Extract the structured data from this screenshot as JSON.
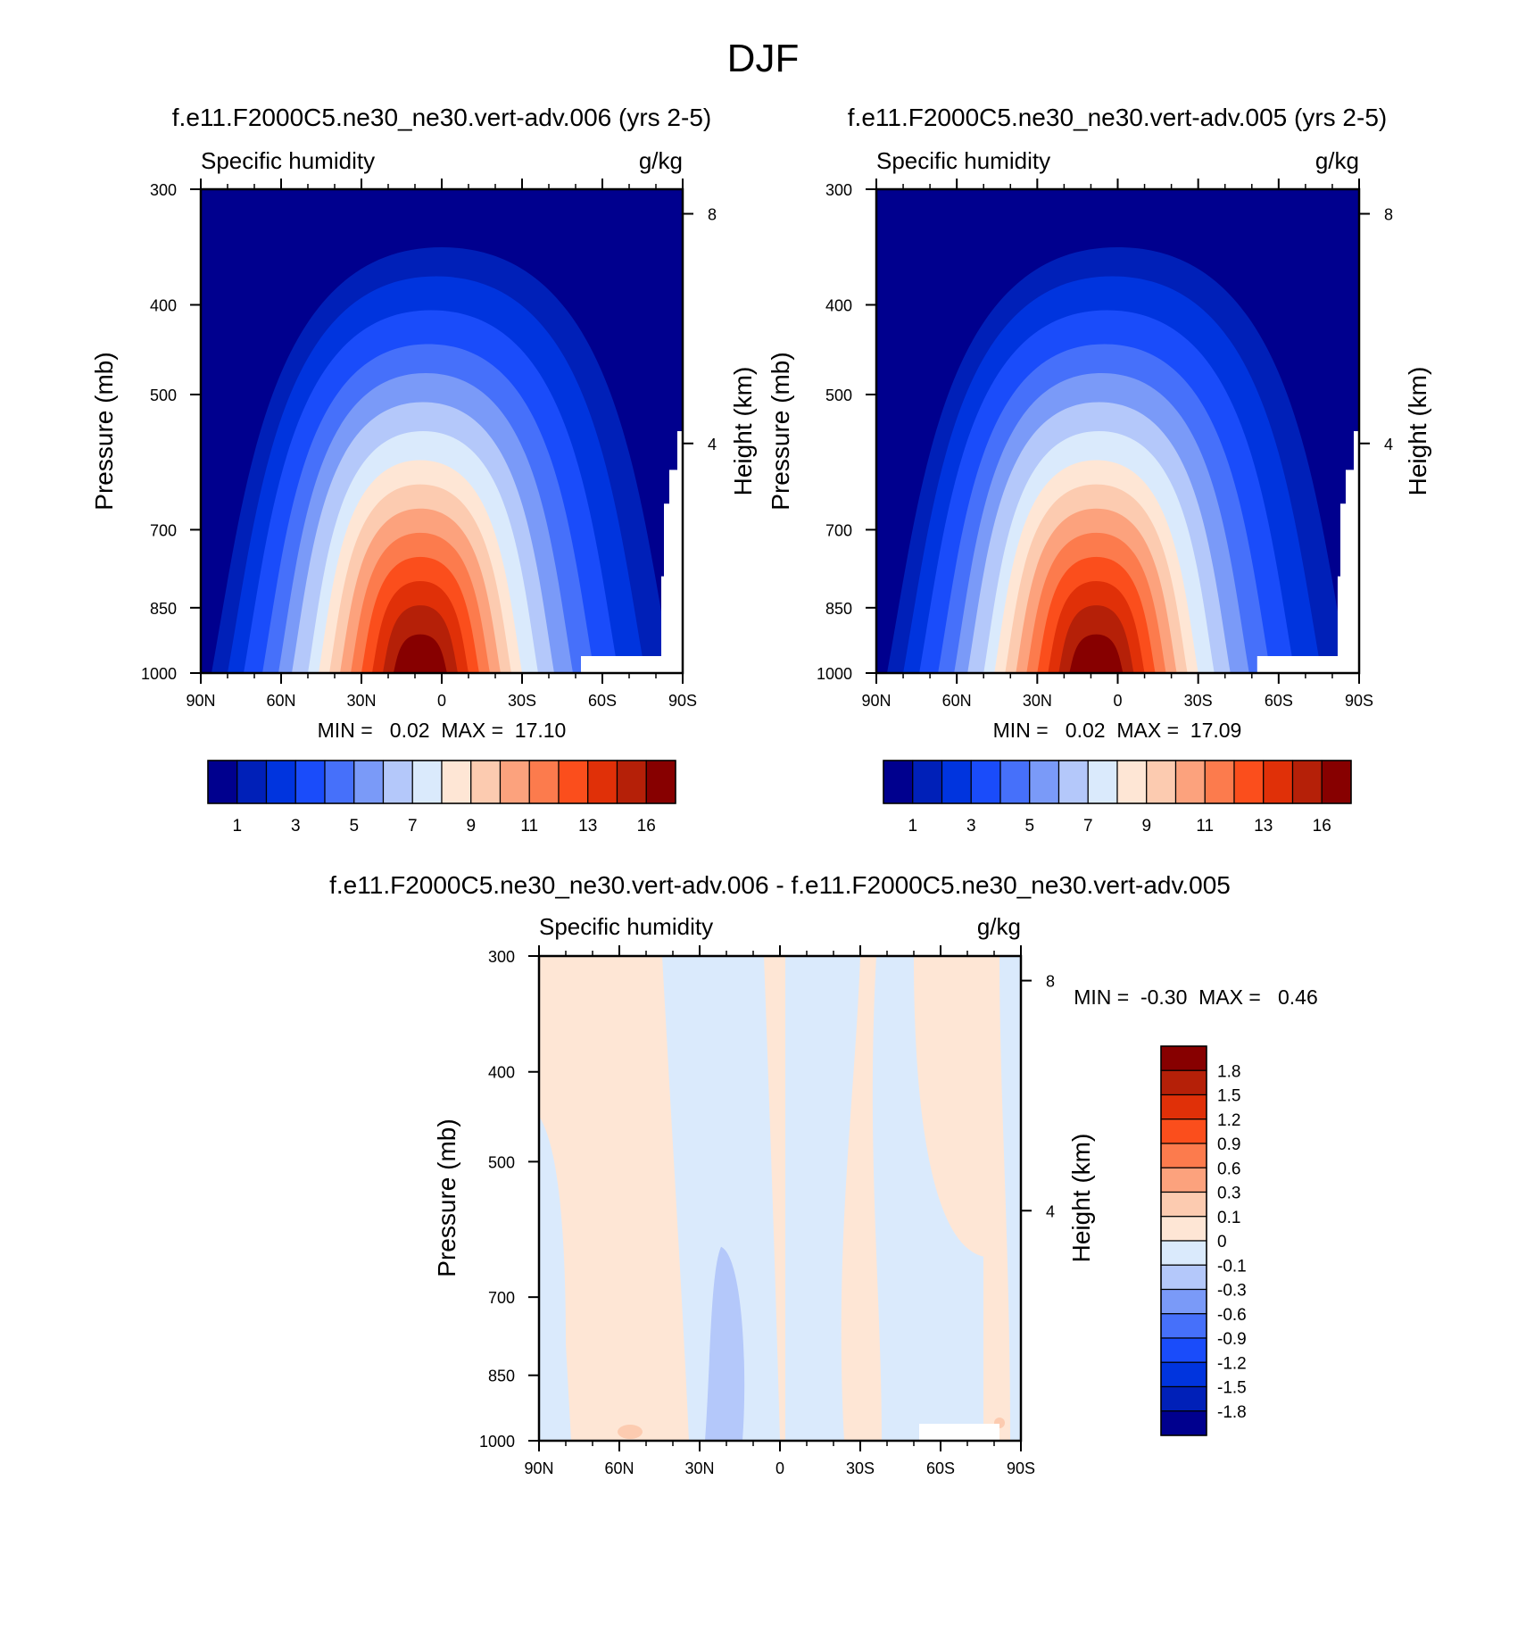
{
  "figure": {
    "title": "DJF"
  },
  "chart_data": [
    {
      "type": "heatmap",
      "subtitle": "f.e11.F2000C5.ne30_ne30.vert-adv.006 (yrs 2-5)",
      "left_label": "Specific humidity",
      "right_label": "g/kg",
      "xlabel": "",
      "ylabel": "Pressure (mb)",
      "y2label": "Height (km)",
      "xticks": [
        "90N",
        "60N",
        "30N",
        "0",
        "30S",
        "60S",
        "90S"
      ],
      "xlim": [
        90,
        -90
      ],
      "yticks": [
        "300",
        "400",
        "500",
        "700",
        "850",
        "1000"
      ],
      "ylim": [
        1000,
        300
      ],
      "yscale": "log",
      "y2ticks": [
        "8",
        "4"
      ],
      "stats": "MIN =   0.02  MAX =  17.10",
      "min": 0.02,
      "max": 17.1,
      "levels": [
        0.5,
        1,
        2,
        3,
        4,
        5,
        6,
        7,
        8,
        9,
        10,
        11,
        12,
        13,
        14,
        16
      ],
      "colorbar": {
        "orientation": "horizontal",
        "labels": [
          "1",
          "3",
          "5",
          "7",
          "9",
          "11",
          "13",
          "16"
        ],
        "colors": [
          "#00008e",
          "#0020b8",
          "#0034de",
          "#1a4cfa",
          "#4670fa",
          "#7a9af8",
          "#b4c8fa",
          "#daeafc",
          "#fee6d5",
          "#fccbb0",
          "#fca27d",
          "#fc7b4d",
          "#fb4e1c",
          "#e03008",
          "#b52008",
          "#870000"
        ]
      }
    },
    {
      "type": "heatmap",
      "subtitle": "f.e11.F2000C5.ne30_ne30.vert-adv.005 (yrs 2-5)",
      "left_label": "Specific humidity",
      "right_label": "g/kg",
      "xlabel": "",
      "ylabel": "Pressure (mb)",
      "y2label": "Height (km)",
      "xticks": [
        "90N",
        "60N",
        "30N",
        "0",
        "30S",
        "60S",
        "90S"
      ],
      "xlim": [
        90,
        -90
      ],
      "yticks": [
        "300",
        "400",
        "500",
        "700",
        "850",
        "1000"
      ],
      "ylim": [
        1000,
        300
      ],
      "yscale": "log",
      "y2ticks": [
        "8",
        "4"
      ],
      "stats": "MIN =   0.02  MAX =  17.09",
      "min": 0.02,
      "max": 17.09,
      "levels": [
        0.5,
        1,
        2,
        3,
        4,
        5,
        6,
        7,
        8,
        9,
        10,
        11,
        12,
        13,
        14,
        16
      ],
      "colorbar": {
        "orientation": "horizontal",
        "labels": [
          "1",
          "3",
          "5",
          "7",
          "9",
          "11",
          "13",
          "16"
        ],
        "colors": [
          "#00008e",
          "#0020b8",
          "#0034de",
          "#1a4cfa",
          "#4670fa",
          "#7a9af8",
          "#b4c8fa",
          "#daeafc",
          "#fee6d5",
          "#fccbb0",
          "#fca27d",
          "#fc7b4d",
          "#fb4e1c",
          "#e03008",
          "#b52008",
          "#870000"
        ]
      }
    },
    {
      "type": "heatmap",
      "subtitle": "f.e11.F2000C5.ne30_ne30.vert-adv.006 - f.e11.F2000C5.ne30_ne30.vert-adv.005",
      "left_label": "Specific humidity",
      "right_label": "g/kg",
      "xlabel": "",
      "ylabel": "Pressure (mb)",
      "y2label": "Height (km)",
      "xticks": [
        "90N",
        "60N",
        "30N",
        "0",
        "30S",
        "60S",
        "90S"
      ],
      "xlim": [
        90,
        -90
      ],
      "yticks": [
        "300",
        "400",
        "500",
        "700",
        "850",
        "1000"
      ],
      "ylim": [
        1000,
        300
      ],
      "yscale": "log",
      "y2ticks": [
        "8",
        "4"
      ],
      "stats": "MIN =  -0.30  MAX =   0.46",
      "min": -0.3,
      "max": 0.46,
      "colorbar": {
        "orientation": "vertical",
        "labels": [
          "1.8",
          "1.5",
          "1.2",
          "0.9",
          "0.6",
          "0.3",
          "0.1",
          "0",
          "-0.1",
          "-0.3",
          "-0.6",
          "-0.9",
          "-1.2",
          "-1.5",
          "-1.8"
        ],
        "colors": [
          "#870000",
          "#b52008",
          "#e03008",
          "#fb4e1c",
          "#fc7b4d",
          "#fca27d",
          "#fccbb0",
          "#fee6d5",
          "#daeafc",
          "#b4c8fa",
          "#7a9af8",
          "#4670fa",
          "#1a4cfa",
          "#0034de",
          "#0020b8",
          "#00008e"
        ]
      }
    }
  ]
}
